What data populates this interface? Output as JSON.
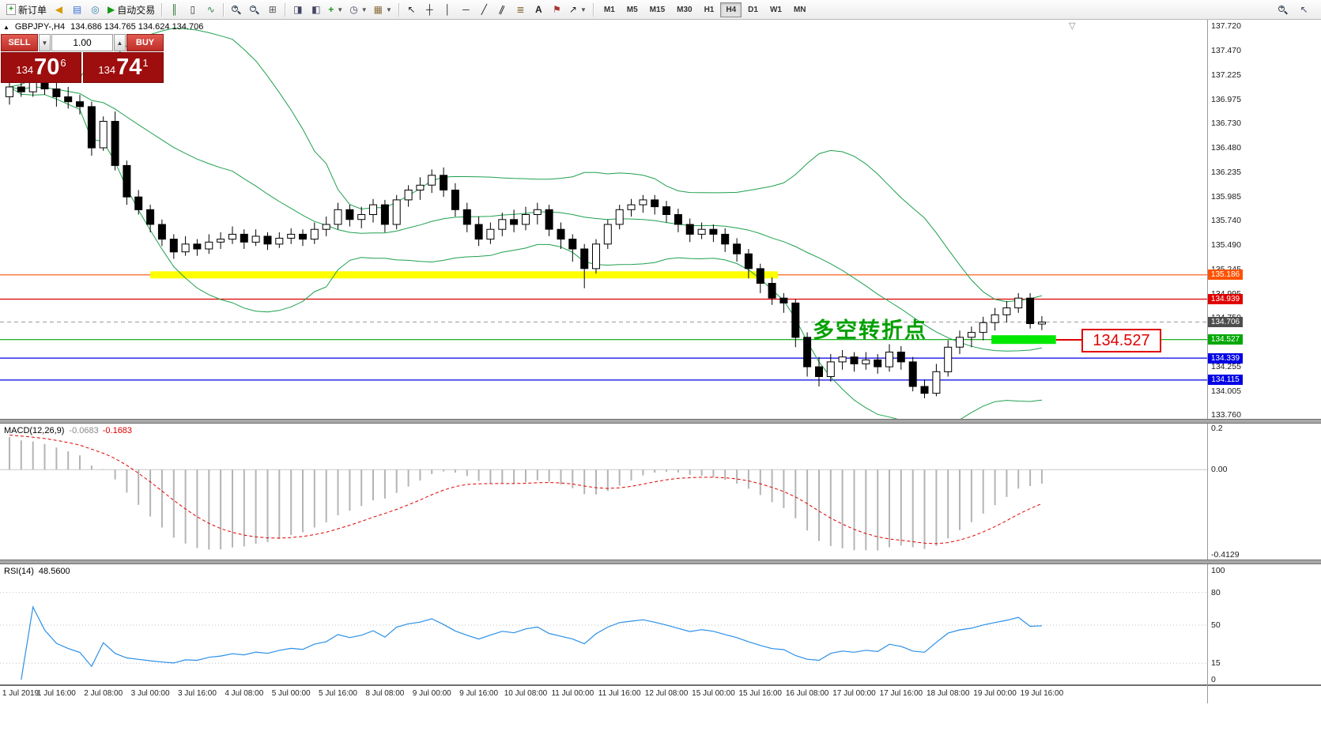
{
  "toolbar": {
    "new_order_label": "新订单",
    "autotrading_label": "自动交易",
    "timeframes": [
      "M1",
      "M5",
      "M15",
      "M30",
      "H1",
      "H4",
      "D1",
      "W1",
      "MN"
    ],
    "active_timeframe": "H4"
  },
  "chart_header": {
    "symbol": "GBPJPY-,H4",
    "ohlc": "134.686 134.765 134.624 134.706"
  },
  "trade_panel": {
    "sell_label": "SELL",
    "buy_label": "BUY",
    "volume": "1.00",
    "sell_price": {
      "main": "134",
      "big": "70",
      "sup": "6"
    },
    "buy_price": {
      "main": "134",
      "big": "74",
      "sup": "1"
    }
  },
  "price_axis_labels": [
    "137.720",
    "137.470",
    "137.225",
    "136.975",
    "136.730",
    "136.480",
    "136.235",
    "135.985",
    "135.740",
    "135.490",
    "135.245",
    "134.995",
    "134.750",
    "134.500",
    "134.255",
    "134.005",
    "133.760"
  ],
  "price_tags": [
    {
      "label": "135.186",
      "color": "#ff5200"
    },
    {
      "label": "134.939",
      "color": "#e00000"
    },
    {
      "label": "134.706",
      "color": "#4d4d4d"
    },
    {
      "label": "134.527",
      "color": "#00a800"
    },
    {
      "label": "134.339",
      "color": "#0000e6"
    },
    {
      "label": "134.115",
      "color": "#0000e6"
    }
  ],
  "annotation": {
    "text": "多空转折点",
    "color": "#00a000"
  },
  "callout": {
    "text": "134.527",
    "color": "#e00000"
  },
  "macd_panel": {
    "name": "MACD(12,26,9)",
    "value1": "-0.0683",
    "value2": "-0.1683",
    "axis_labels": [
      "0.2",
      "0.00",
      "-0.4129"
    ]
  },
  "rsi_panel": {
    "name": "RSI(14)",
    "value": "48.5600",
    "axis_labels": [
      "100",
      "80",
      "50",
      "15",
      "0"
    ]
  },
  "time_axis_labels": [
    "1 Jul 2019",
    "1 Jul 16:00",
    "2 Jul 08:00",
    "3 Jul 00:00",
    "3 Jul 16:00",
    "4 Jul 08:00",
    "5 Jul 00:00",
    "5 Jul 16:00",
    "8 Jul 08:00",
    "9 Jul 00:00",
    "9 Jul 16:00",
    "10 Jul 08:00",
    "11 Jul 00:00",
    "11 Jul 16:00",
    "12 Jul 08:00",
    "15 Jul 00:00",
    "15 Jul 16:00",
    "16 Jul 08:00",
    "17 Jul 00:00",
    "17 Jul 16:00",
    "18 Jul 08:00",
    "19 Jul 00:00",
    "19 Jul 16:00"
  ],
  "chart_data": {
    "type": "candlestick",
    "symbol": "GBPJPY-",
    "timeframe": "H4",
    "price_range": [
      133.76,
      137.72
    ],
    "current_price": 134.706,
    "bid": "134.706",
    "ask": "134.741",
    "indicators": {
      "bollinger": {
        "period": 20,
        "deviation": 2,
        "color": "#1fa04d"
      },
      "macd": {
        "fast": 12,
        "slow": 26,
        "signal": 9,
        "histogram_color": "#b4b4b4",
        "signal_color": "#e00000",
        "axis_range": [
          0.2,
          -0.4129
        ]
      },
      "rsi": {
        "period": 14,
        "color": "#2a8fe8",
        "levels": [
          80,
          50,
          15
        ],
        "value": 48.56
      }
    },
    "levels": [
      {
        "price": 135.186,
        "color": "#ff5200",
        "style": "solid"
      },
      {
        "price": 134.939,
        "color": "#e00000",
        "style": "solid"
      },
      {
        "price": 134.706,
        "color": "#aaaaaa",
        "style": "dashed"
      },
      {
        "price": 134.527,
        "color": "#00a800",
        "style": "solid"
      },
      {
        "price": 134.339,
        "color": "#0000e6",
        "style": "solid"
      },
      {
        "price": 134.115,
        "color": "#0000e6",
        "style": "solid"
      }
    ],
    "highlights": [
      {
        "price": 135.186,
        "from_bar": 12,
        "to_bar": 65.5,
        "color": "#ffff00",
        "thickness": 9
      },
      {
        "price": 134.527,
        "from_bar": 83.7,
        "to_bar": 89.2,
        "color": "#00e800",
        "thickness": 11
      }
    ],
    "ohlc": [
      [
        137.0,
        137.18,
        136.92,
        137.1
      ],
      [
        137.1,
        137.22,
        137.0,
        137.05
      ],
      [
        137.05,
        137.25,
        137.0,
        137.15
      ],
      [
        137.15,
        137.28,
        137.02,
        137.08
      ],
      [
        137.08,
        137.15,
        136.9,
        137.0
      ],
      [
        137.0,
        137.1,
        136.88,
        136.95
      ],
      [
        136.95,
        137.02,
        136.82,
        136.9
      ],
      [
        136.9,
        136.95,
        136.4,
        136.48
      ],
      [
        136.48,
        136.8,
        136.45,
        136.75
      ],
      [
        136.75,
        136.85,
        136.25,
        136.3
      ],
      [
        136.3,
        136.35,
        135.9,
        135.98
      ],
      [
        135.98,
        136.05,
        135.8,
        135.85
      ],
      [
        135.85,
        135.9,
        135.62,
        135.7
      ],
      [
        135.7,
        135.75,
        135.48,
        135.55
      ],
      [
        135.55,
        135.6,
        135.35,
        135.42
      ],
      [
        135.42,
        135.58,
        135.38,
        135.5
      ],
      [
        135.5,
        135.55,
        135.38,
        135.45
      ],
      [
        135.45,
        135.6,
        135.4,
        135.52
      ],
      [
        135.52,
        135.62,
        135.45,
        135.55
      ],
      [
        135.55,
        135.68,
        135.5,
        135.6
      ],
      [
        135.6,
        135.65,
        135.45,
        135.52
      ],
      [
        135.52,
        135.65,
        135.48,
        135.58
      ],
      [
        135.58,
        135.62,
        135.44,
        135.5
      ],
      [
        135.5,
        135.62,
        135.46,
        135.56
      ],
      [
        135.56,
        135.66,
        135.5,
        135.6
      ],
      [
        135.6,
        135.65,
        135.48,
        135.55
      ],
      [
        135.55,
        135.72,
        135.5,
        135.65
      ],
      [
        135.65,
        135.78,
        135.58,
        135.7
      ],
      [
        135.7,
        135.92,
        135.65,
        135.85
      ],
      [
        135.85,
        135.9,
        135.68,
        135.75
      ],
      [
        135.75,
        135.88,
        135.66,
        135.8
      ],
      [
        135.8,
        135.96,
        135.72,
        135.9
      ],
      [
        135.9,
        135.95,
        135.62,
        135.7
      ],
      [
        135.7,
        136.0,
        135.65,
        135.95
      ],
      [
        135.95,
        136.1,
        135.88,
        136.05
      ],
      [
        136.05,
        136.18,
        135.95,
        136.1
      ],
      [
        136.1,
        136.26,
        136.02,
        136.2
      ],
      [
        136.2,
        136.28,
        135.98,
        136.05
      ],
      [
        136.05,
        136.12,
        135.78,
        135.85
      ],
      [
        135.85,
        135.92,
        135.62,
        135.7
      ],
      [
        135.7,
        135.78,
        135.48,
        135.55
      ],
      [
        135.55,
        135.72,
        135.5,
        135.65
      ],
      [
        135.65,
        135.82,
        135.58,
        135.75
      ],
      [
        135.75,
        135.85,
        135.62,
        135.7
      ],
      [
        135.7,
        135.88,
        135.64,
        135.8
      ],
      [
        135.8,
        135.92,
        135.7,
        135.85
      ],
      [
        135.85,
        135.9,
        135.58,
        135.65
      ],
      [
        135.65,
        135.72,
        135.45,
        135.55
      ],
      [
        135.55,
        135.6,
        135.32,
        135.45
      ],
      [
        135.45,
        135.5,
        135.05,
        135.25
      ],
      [
        135.25,
        135.55,
        135.2,
        135.5
      ],
      [
        135.5,
        135.75,
        135.45,
        135.7
      ],
      [
        135.7,
        135.9,
        135.65,
        135.85
      ],
      [
        135.85,
        135.96,
        135.78,
        135.9
      ],
      [
        135.9,
        136.0,
        135.82,
        135.95
      ],
      [
        135.95,
        136.0,
        135.8,
        135.88
      ],
      [
        135.88,
        135.94,
        135.72,
        135.8
      ],
      [
        135.8,
        135.86,
        135.62,
        135.7
      ],
      [
        135.7,
        135.76,
        135.52,
        135.6
      ],
      [
        135.6,
        135.72,
        135.55,
        135.65
      ],
      [
        135.65,
        135.7,
        135.52,
        135.6
      ],
      [
        135.6,
        135.66,
        135.42,
        135.5
      ],
      [
        135.5,
        135.56,
        135.32,
        135.4
      ],
      [
        135.4,
        135.45,
        135.15,
        135.25
      ],
      [
        135.25,
        135.3,
        135.0,
        135.1
      ],
      [
        135.1,
        135.16,
        134.88,
        134.95
      ],
      [
        134.95,
        135.0,
        134.8,
        134.9
      ],
      [
        134.9,
        134.94,
        134.45,
        134.55
      ],
      [
        134.55,
        134.6,
        134.15,
        134.25
      ],
      [
        134.25,
        134.35,
        134.05,
        134.15
      ],
      [
        134.15,
        134.38,
        134.1,
        134.3
      ],
      [
        134.3,
        134.42,
        134.22,
        134.35
      ],
      [
        134.35,
        134.4,
        134.2,
        134.28
      ],
      [
        134.28,
        134.4,
        134.22,
        134.32
      ],
      [
        134.32,
        134.38,
        134.18,
        134.25
      ],
      [
        134.25,
        134.48,
        134.2,
        134.4
      ],
      [
        134.4,
        134.46,
        134.22,
        134.3
      ],
      [
        134.3,
        134.35,
        134.0,
        134.05
      ],
      [
        134.05,
        134.12,
        133.93,
        133.98
      ],
      [
        133.98,
        134.28,
        133.95,
        134.2
      ],
      [
        134.2,
        134.52,
        134.15,
        134.45
      ],
      [
        134.45,
        134.62,
        134.38,
        134.55
      ],
      [
        134.55,
        134.66,
        134.45,
        134.6
      ],
      [
        134.6,
        134.76,
        134.52,
        134.7
      ],
      [
        134.7,
        134.85,
        134.62,
        134.78
      ],
      [
        134.78,
        134.92,
        134.7,
        134.85
      ],
      [
        134.85,
        135.0,
        134.8,
        134.95
      ],
      [
        134.95,
        135.0,
        134.64,
        134.69
      ],
      [
        134.686,
        134.765,
        134.624,
        134.706
      ]
    ]
  }
}
